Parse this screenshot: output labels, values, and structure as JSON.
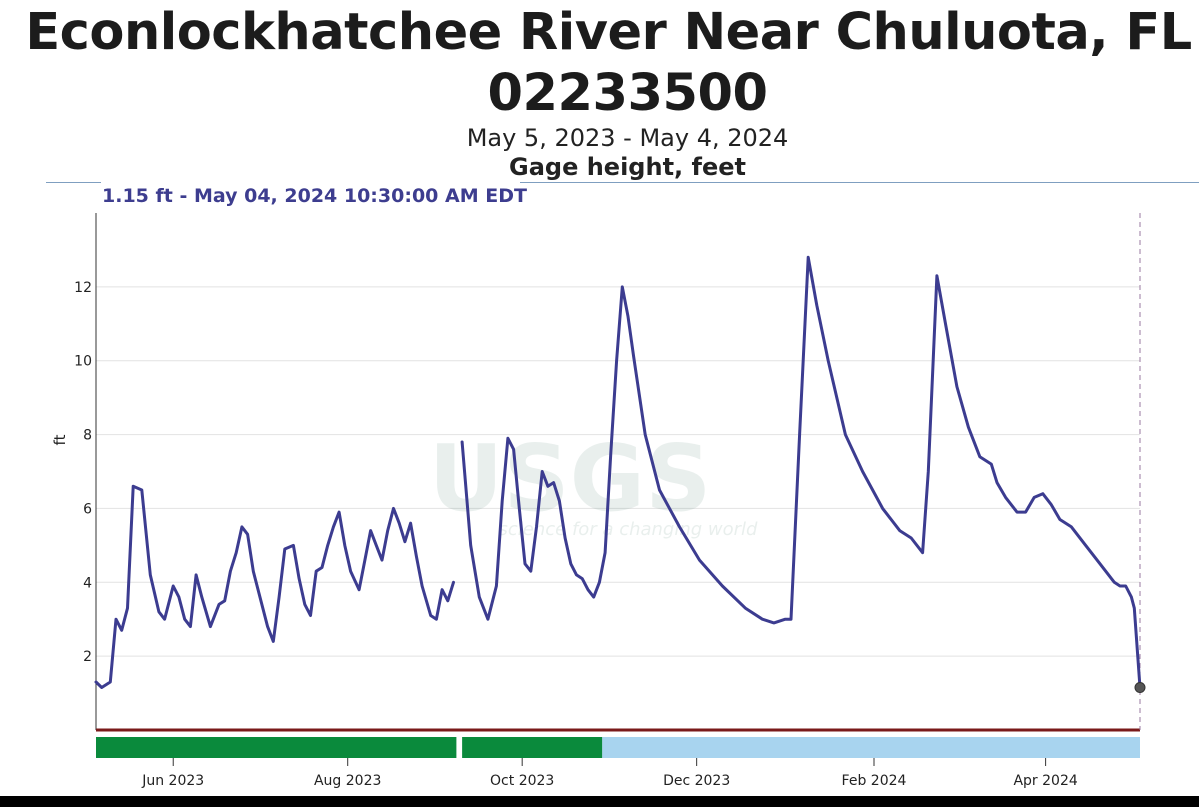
{
  "header": {
    "title_line1": "Econlockhatchee River Near Chuluota, FL -",
    "title_line2": "02233500",
    "date_range": "May 5, 2023 - May 4, 2024",
    "parameter": "Gage height, feet",
    "readout": "1.15 ft - May 04, 2024 10:30:00 AM EDT"
  },
  "colors": {
    "series": "#3c3c90",
    "grid": "#e2e2e2",
    "approved": "#0a8a3c",
    "provisional": "#a8d4ef",
    "baseline": "#7a1a1a"
  },
  "chart_data": {
    "type": "line",
    "title": "Econlockhatchee River Near Chuluota, FL - 02233500",
    "subtitle": "May 5, 2023 - May 4, 2024",
    "ylabel": "ft",
    "xlim": [
      "2023-05-05",
      "2024-05-04"
    ],
    "ylim": [
      0,
      14
    ],
    "y_ticks": [
      2,
      4,
      6,
      8,
      10,
      12
    ],
    "x_ticks": [
      {
        "date": "2023-06-01",
        "label": "Jun 2023"
      },
      {
        "date": "2023-08-01",
        "label": "Aug 2023"
      },
      {
        "date": "2023-10-01",
        "label": "Oct 2023"
      },
      {
        "date": "2023-12-01",
        "label": "Dec 2023"
      },
      {
        "date": "2024-02-01",
        "label": "Feb 2024"
      },
      {
        "date": "2024-04-01",
        "label": "Apr 2024"
      }
    ],
    "grid": true,
    "watermark": "USGS",
    "watermark_tagline": "science for a changing world",
    "series": [
      {
        "segments": [
          [
            [
              "2023-05-05",
              1.3
            ],
            [
              "2023-05-07",
              1.15
            ],
            [
              "2023-05-10",
              1.3
            ],
            [
              "2023-05-12",
              3.0
            ],
            [
              "2023-05-14",
              2.7
            ],
            [
              "2023-05-16",
              3.3
            ],
            [
              "2023-05-18",
              6.6
            ],
            [
              "2023-05-21",
              6.5
            ],
            [
              "2023-05-24",
              4.2
            ],
            [
              "2023-05-27",
              3.2
            ],
            [
              "2023-05-29",
              3.0
            ],
            [
              "2023-06-01",
              3.9
            ],
            [
              "2023-06-03",
              3.6
            ],
            [
              "2023-06-05",
              3.0
            ],
            [
              "2023-06-07",
              2.8
            ],
            [
              "2023-06-09",
              4.2
            ],
            [
              "2023-06-11",
              3.6
            ],
            [
              "2023-06-14",
              2.8
            ],
            [
              "2023-06-17",
              3.4
            ],
            [
              "2023-06-19",
              3.5
            ],
            [
              "2023-06-21",
              4.3
            ],
            [
              "2023-06-23",
              4.8
            ],
            [
              "2023-06-25",
              5.5
            ],
            [
              "2023-06-27",
              5.3
            ],
            [
              "2023-06-29",
              4.3
            ],
            [
              "2023-07-01",
              3.7
            ],
            [
              "2023-07-04",
              2.8
            ],
            [
              "2023-07-06",
              2.4
            ],
            [
              "2023-07-08",
              3.6
            ],
            [
              "2023-07-10",
              4.9
            ],
            [
              "2023-07-13",
              5.0
            ],
            [
              "2023-07-15",
              4.1
            ],
            [
              "2023-07-17",
              3.4
            ],
            [
              "2023-07-19",
              3.1
            ],
            [
              "2023-07-21",
              4.3
            ],
            [
              "2023-07-23",
              4.4
            ],
            [
              "2023-07-25",
              5.0
            ],
            [
              "2023-07-27",
              5.5
            ],
            [
              "2023-07-29",
              5.9
            ],
            [
              "2023-07-31",
              5.0
            ],
            [
              "2023-08-02",
              4.3
            ],
            [
              "2023-08-05",
              3.8
            ],
            [
              "2023-08-07",
              4.6
            ],
            [
              "2023-08-09",
              5.4
            ],
            [
              "2023-08-11",
              5.0
            ],
            [
              "2023-08-13",
              4.6
            ],
            [
              "2023-08-15",
              5.4
            ],
            [
              "2023-08-17",
              6.0
            ],
            [
              "2023-08-19",
              5.6
            ],
            [
              "2023-08-21",
              5.1
            ],
            [
              "2023-08-23",
              5.6
            ],
            [
              "2023-08-25",
              4.7
            ],
            [
              "2023-08-27",
              3.9
            ],
            [
              "2023-08-30",
              3.1
            ],
            [
              "2023-09-01",
              3.0
            ],
            [
              "2023-09-03",
              3.8
            ],
            [
              "2023-09-05",
              3.5
            ],
            [
              "2023-09-07",
              4.0
            ]
          ],
          [
            [
              "2023-09-10",
              7.8
            ],
            [
              "2023-09-13",
              5.0
            ],
            [
              "2023-09-16",
              3.6
            ],
            [
              "2023-09-19",
              3.0
            ],
            [
              "2023-09-22",
              3.9
            ],
            [
              "2023-09-24",
              6.2
            ],
            [
              "2023-09-26",
              7.9
            ],
            [
              "2023-09-28",
              7.6
            ],
            [
              "2023-09-30",
              6.0
            ],
            [
              "2023-10-02",
              4.5
            ],
            [
              "2023-10-04",
              4.3
            ],
            [
              "2023-10-06",
              5.5
            ],
            [
              "2023-10-08",
              7.0
            ],
            [
              "2023-10-10",
              6.6
            ],
            [
              "2023-10-12",
              6.7
            ],
            [
              "2023-10-14",
              6.2
            ],
            [
              "2023-10-16",
              5.2
            ],
            [
              "2023-10-18",
              4.5
            ],
            [
              "2023-10-20",
              4.2
            ],
            [
              "2023-10-22",
              4.1
            ],
            [
              "2023-10-24",
              3.8
            ],
            [
              "2023-10-26",
              3.6
            ],
            [
              "2023-10-28",
              4.0
            ],
            [
              "2023-10-30",
              4.8
            ],
            [
              "2023-11-01",
              7.5
            ],
            [
              "2023-11-03",
              10.0
            ],
            [
              "2023-11-05",
              12.0
            ],
            [
              "2023-11-07",
              11.2
            ],
            [
              "2023-11-09",
              10.1
            ],
            [
              "2023-11-13",
              8.0
            ],
            [
              "2023-11-18",
              6.5
            ],
            [
              "2023-11-25",
              5.5
            ],
            [
              "2023-12-02",
              4.6
            ],
            [
              "2023-12-10",
              3.9
            ],
            [
              "2023-12-18",
              3.3
            ],
            [
              "2023-12-24",
              3.0
            ],
            [
              "2023-12-28",
              2.9
            ],
            [
              "2024-01-01",
              3.0
            ],
            [
              "2024-01-03",
              3.0
            ],
            [
              "2024-01-06",
              8.0
            ],
            [
              "2024-01-09",
              12.8
            ],
            [
              "2024-01-12",
              11.5
            ],
            [
              "2024-01-16",
              10.0
            ],
            [
              "2024-01-22",
              8.0
            ],
            [
              "2024-01-28",
              7.0
            ],
            [
              "2024-02-04",
              6.0
            ],
            [
              "2024-02-10",
              5.4
            ],
            [
              "2024-02-14",
              5.2
            ],
            [
              "2024-02-18",
              4.8
            ],
            [
              "2024-02-20",
              7.0
            ],
            [
              "2024-02-23",
              12.3
            ],
            [
              "2024-02-26",
              11.0
            ],
            [
              "2024-03-01",
              9.3
            ],
            [
              "2024-03-05",
              8.2
            ],
            [
              "2024-03-09",
              7.4
            ],
            [
              "2024-03-13",
              7.2
            ],
            [
              "2024-03-15",
              6.7
            ],
            [
              "2024-03-18",
              6.3
            ],
            [
              "2024-03-22",
              5.9
            ],
            [
              "2024-03-25",
              5.9
            ],
            [
              "2024-03-28",
              6.3
            ],
            [
              "2024-03-31",
              6.4
            ],
            [
              "2024-04-03",
              6.1
            ],
            [
              "2024-04-06",
              5.7
            ],
            [
              "2024-04-10",
              5.5
            ],
            [
              "2024-04-15",
              5.0
            ],
            [
              "2024-04-20",
              4.5
            ],
            [
              "2024-04-25",
              4.0
            ],
            [
              "2024-04-27",
              3.9
            ],
            [
              "2024-04-29",
              3.9
            ],
            [
              "2024-05-01",
              3.6
            ],
            [
              "2024-05-02",
              3.3
            ],
            [
              "2024-05-04",
              1.15
            ]
          ]
        ]
      }
    ],
    "status_bar": [
      {
        "from": "2023-05-05",
        "to": "2023-09-08",
        "status": "approved"
      },
      {
        "from": "2023-09-10",
        "to": "2023-10-29",
        "status": "approved"
      },
      {
        "from": "2023-10-29",
        "to": "2024-05-04",
        "status": "provisional"
      }
    ],
    "current_point": {
      "date": "2024-05-04",
      "value": 1.15
    }
  }
}
